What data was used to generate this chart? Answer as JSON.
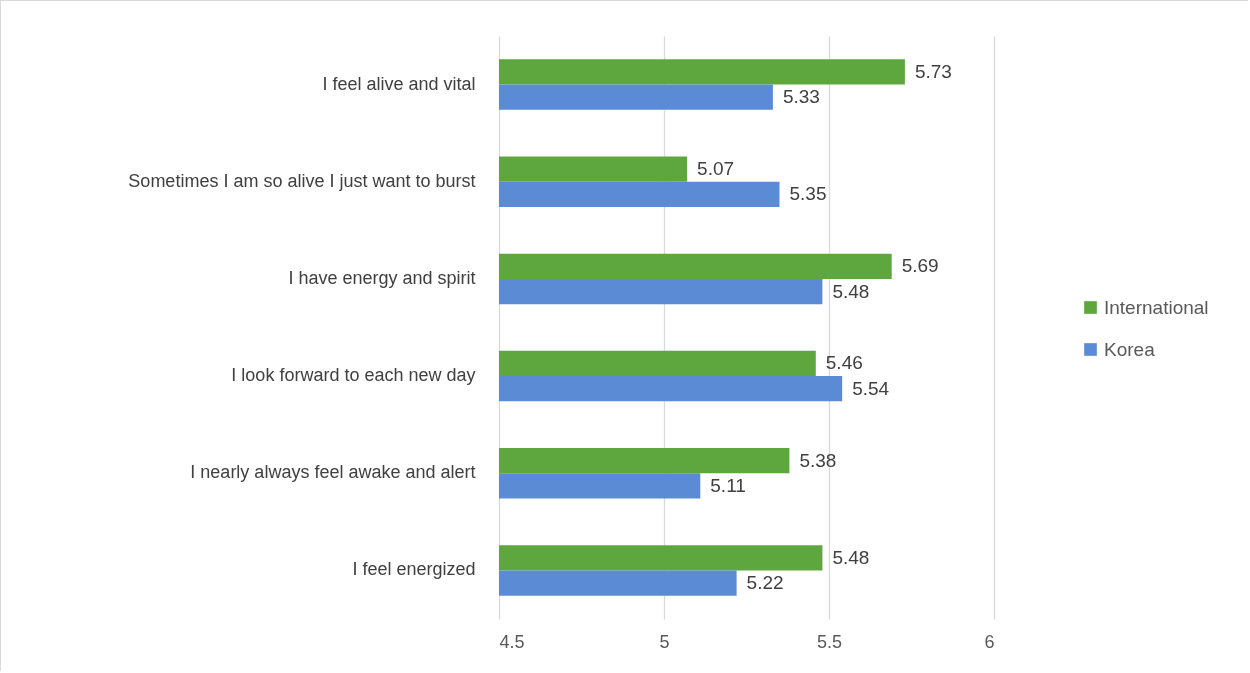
{
  "chart_data": {
    "type": "bar",
    "orientation": "horizontal",
    "categories": [
      "I feel alive and vital",
      "Sometimes I am so alive I just want to burst",
      "I have energy and spirit",
      "I look forward to each new day",
      "I nearly always feel awake and alert",
      "I feel energized"
    ],
    "series": [
      {
        "name": "International",
        "color": "#5ea73f",
        "values": [
          5.73,
          5.07,
          5.69,
          5.46,
          5.38,
          5.48
        ]
      },
      {
        "name": "Korea",
        "color": "#5b8bd4",
        "values": [
          5.33,
          5.35,
          5.48,
          5.54,
          5.11,
          5.22
        ]
      }
    ],
    "xlim": [
      4.5,
      6
    ],
    "xticks": [
      4.5,
      5,
      5.5,
      6
    ],
    "grid": "x",
    "legend": "right",
    "data_labels": true
  }
}
